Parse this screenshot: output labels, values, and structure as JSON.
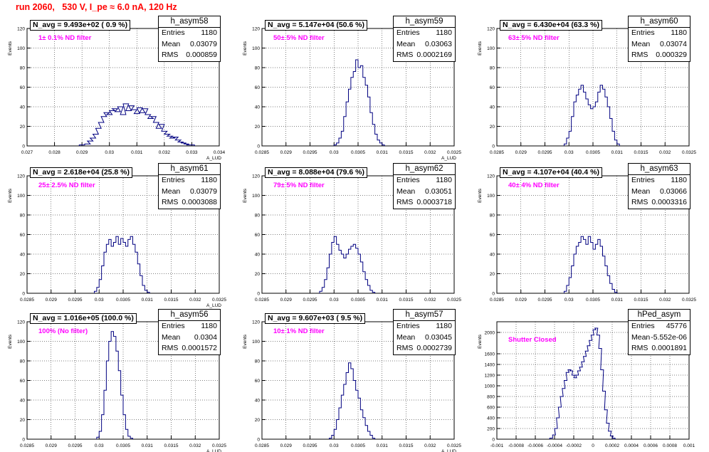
{
  "page": {
    "title": "run 2060,   530 V, I_pe ≈ 6.0 nA, 120 Hz"
  },
  "colors": {
    "title": "#ff0000",
    "histogram": "#000080",
    "filter_label": "#ff00ff",
    "grid": "#000000"
  },
  "chart_data": [
    {
      "type": "histogram",
      "name": "h_asym58",
      "stats": {
        "entries": "1180",
        "mean": "0.03079",
        "rms": "0.000859"
      },
      "n_avg": "N_avg = 9.493e+02 ( 0.9 %)",
      "filter": "1± 0.1% ND filter",
      "xlabel": "A_LUD",
      "ylabel": "Events",
      "xlim": [
        0.027,
        0.034
      ],
      "ylim": [
        0,
        120
      ],
      "xticks": [
        "0.027",
        "0.028",
        "0.029",
        "0.03",
        "0.031",
        "0.032",
        "0.033",
        "0.034"
      ],
      "yticks": [
        "0",
        "20",
        "40",
        "60",
        "80",
        "100",
        "120"
      ],
      "grid": true,
      "bins": [
        [
          0.0289,
          1
        ],
        [
          0.0291,
          2
        ],
        [
          0.0292,
          5
        ],
        [
          0.0293,
          8
        ],
        [
          0.0294,
          12
        ],
        [
          0.0295,
          18
        ],
        [
          0.0296,
          24
        ],
        [
          0.0297,
          30
        ],
        [
          0.0298,
          34
        ],
        [
          0.0299,
          32
        ],
        [
          0.03,
          36
        ],
        [
          0.0301,
          38
        ],
        [
          0.0302,
          35
        ],
        [
          0.0303,
          40
        ],
        [
          0.0304,
          32
        ],
        [
          0.0305,
          43
        ],
        [
          0.0306,
          36
        ],
        [
          0.0307,
          41
        ],
        [
          0.0308,
          37
        ],
        [
          0.0309,
          33
        ],
        [
          0.031,
          39
        ],
        [
          0.0311,
          34
        ],
        [
          0.0312,
          38
        ],
        [
          0.0313,
          32
        ],
        [
          0.0314,
          28
        ],
        [
          0.0315,
          30
        ],
        [
          0.0316,
          24
        ],
        [
          0.0317,
          18
        ],
        [
          0.0318,
          22
        ],
        [
          0.0319,
          15
        ],
        [
          0.032,
          12
        ],
        [
          0.0321,
          10
        ],
        [
          0.0322,
          8
        ],
        [
          0.0323,
          9
        ],
        [
          0.0324,
          6
        ],
        [
          0.0325,
          4
        ],
        [
          0.0326,
          3
        ],
        [
          0.0327,
          2
        ],
        [
          0.0328,
          1
        ],
        [
          0.0329,
          1
        ]
      ]
    },
    {
      "type": "histogram",
      "name": "h_asym59",
      "stats": {
        "entries": "1180",
        "mean": "0.03063",
        "rms": "0.0002169"
      },
      "n_avg": "N_avg = 5.147e+04 (50.6 %)",
      "filter": "50± 5% ND filter",
      "xlabel": "A_LUD",
      "ylabel": "Events",
      "xlim": [
        0.0285,
        0.0325
      ],
      "ylim": [
        0,
        120
      ],
      "xticks": [
        "0.0285",
        "0.029",
        "0.0295",
        "0.03",
        "0.0305",
        "0.031",
        "0.0315",
        "0.032",
        "0.0325"
      ],
      "yticks": [
        "0",
        "20",
        "40",
        "60",
        "80",
        "100",
        "120"
      ],
      "grid": true,
      "bins": [
        [
          0.03,
          1
        ],
        [
          0.03005,
          3
        ],
        [
          0.0301,
          8
        ],
        [
          0.03015,
          15
        ],
        [
          0.0302,
          30
        ],
        [
          0.03025,
          45
        ],
        [
          0.0303,
          58
        ],
        [
          0.03035,
          70
        ],
        [
          0.0304,
          76
        ],
        [
          0.03045,
          88
        ],
        [
          0.0305,
          80
        ],
        [
          0.03055,
          82
        ],
        [
          0.0306,
          70
        ],
        [
          0.03065,
          62
        ],
        [
          0.0307,
          50
        ],
        [
          0.03075,
          34
        ],
        [
          0.0308,
          22
        ],
        [
          0.03085,
          12
        ],
        [
          0.0309,
          6
        ],
        [
          0.03095,
          3
        ],
        [
          0.031,
          1
        ]
      ]
    },
    {
      "type": "histogram",
      "name": "h_asym60",
      "stats": {
        "entries": "1180",
        "mean": "0.03074",
        "rms": "0.000329"
      },
      "n_avg": "N_avg = 6.430e+04 (63.3 %)",
      "filter": "63± 5% ND filter",
      "xlabel": "",
      "ylabel": "Events",
      "xlim": [
        0.0285,
        0.0325
      ],
      "ylim": [
        0,
        120
      ],
      "xticks": [
        "0.0285",
        "0.029",
        "0.0295",
        "0.03",
        "0.0305",
        "0.031",
        "0.0315",
        "0.032",
        "0.0325"
      ],
      "yticks": [
        "0",
        "20",
        "40",
        "60",
        "80",
        "100",
        "120"
      ],
      "grid": true,
      "bins": [
        [
          0.0299,
          2
        ],
        [
          0.02995,
          8
        ],
        [
          0.03,
          15
        ],
        [
          0.03005,
          30
        ],
        [
          0.0301,
          45
        ],
        [
          0.03015,
          52
        ],
        [
          0.0302,
          58
        ],
        [
          0.03025,
          62
        ],
        [
          0.0303,
          55
        ],
        [
          0.03035,
          48
        ],
        [
          0.0304,
          42
        ],
        [
          0.03045,
          38
        ],
        [
          0.0305,
          40
        ],
        [
          0.03055,
          45
        ],
        [
          0.0306,
          55
        ],
        [
          0.03065,
          62
        ],
        [
          0.0307,
          58
        ],
        [
          0.03075,
          50
        ],
        [
          0.0308,
          40
        ],
        [
          0.03085,
          28
        ],
        [
          0.0309,
          15
        ],
        [
          0.03095,
          6
        ],
        [
          0.031,
          2
        ]
      ]
    },
    {
      "type": "histogram",
      "name": "h_asym61",
      "stats": {
        "entries": "1180",
        "mean": "0.03079",
        "rms": "0.0003088"
      },
      "n_avg": "N_avg = 2.618e+04 (25.8 %)",
      "filter": "25± 2.5% ND filter",
      "xlabel": "A_LUD",
      "ylabel": "Events",
      "xlim": [
        0.0285,
        0.0325
      ],
      "ylim": [
        0,
        120
      ],
      "xticks": [
        "0.0285",
        "0.029",
        "0.0295",
        "0.03",
        "0.0305",
        "0.031",
        "0.0315",
        "0.032",
        "0.0325"
      ],
      "yticks": [
        "0",
        "20",
        "40",
        "60",
        "80",
        "100",
        "120"
      ],
      "grid": true,
      "bins": [
        [
          0.0299,
          2
        ],
        [
          0.02995,
          6
        ],
        [
          0.03,
          14
        ],
        [
          0.03005,
          28
        ],
        [
          0.0301,
          42
        ],
        [
          0.03015,
          50
        ],
        [
          0.0302,
          55
        ],
        [
          0.03025,
          48
        ],
        [
          0.0303,
          52
        ],
        [
          0.03035,
          58
        ],
        [
          0.0304,
          50
        ],
        [
          0.03045,
          56
        ],
        [
          0.0305,
          52
        ],
        [
          0.03055,
          48
        ],
        [
          0.0306,
          55
        ],
        [
          0.03065,
          58
        ],
        [
          0.0307,
          50
        ],
        [
          0.03075,
          42
        ],
        [
          0.0308,
          30
        ],
        [
          0.03085,
          18
        ],
        [
          0.0309,
          8
        ],
        [
          0.03095,
          3
        ],
        [
          0.031,
          1
        ]
      ]
    },
    {
      "type": "histogram",
      "name": "h_asym62",
      "stats": {
        "entries": "1180",
        "mean": "0.03051",
        "rms": "0.0003718"
      },
      "n_avg": "N_avg = 8.088e+04 (79.6 %)",
      "filter": "79± 5% ND filter",
      "xlabel": "",
      "ylabel": "Events",
      "xlim": [
        0.0285,
        0.0325
      ],
      "ylim": [
        0,
        120
      ],
      "xticks": [
        "0.0285",
        "0.029",
        "0.0295",
        "0.03",
        "0.0305",
        "0.031",
        "0.0315",
        "0.032",
        "0.0325"
      ],
      "yticks": [
        "0",
        "20",
        "40",
        "60",
        "80",
        "100",
        "120"
      ],
      "grid": true,
      "bins": [
        [
          0.0297,
          2
        ],
        [
          0.02975,
          6
        ],
        [
          0.0298,
          14
        ],
        [
          0.02985,
          26
        ],
        [
          0.0299,
          40
        ],
        [
          0.02995,
          52
        ],
        [
          0.03,
          58
        ],
        [
          0.03005,
          50
        ],
        [
          0.0301,
          44
        ],
        [
          0.03015,
          40
        ],
        [
          0.0302,
          36
        ],
        [
          0.03025,
          40
        ],
        [
          0.0303,
          45
        ],
        [
          0.03035,
          48
        ],
        [
          0.0304,
          50
        ],
        [
          0.03045,
          46
        ],
        [
          0.0305,
          40
        ],
        [
          0.03055,
          32
        ],
        [
          0.0306,
          22
        ],
        [
          0.03065,
          14
        ],
        [
          0.0307,
          8
        ],
        [
          0.03075,
          3
        ],
        [
          0.0308,
          1
        ]
      ]
    },
    {
      "type": "histogram",
      "name": "h_asym63",
      "stats": {
        "entries": "1180",
        "mean": "0.03066",
        "rms": "0.0003316"
      },
      "n_avg": "N_avg = 4.107e+04 (40.4 %)",
      "filter": "40± 4% ND filter",
      "xlabel": "",
      "ylabel": "Events",
      "xlim": [
        0.0285,
        0.0325
      ],
      "ylim": [
        0,
        120
      ],
      "xticks": [
        "0.0285",
        "0.029",
        "0.0295",
        "0.03",
        "0.0305",
        "0.031",
        "0.0315",
        "0.032",
        "0.0325"
      ],
      "yticks": [
        "0",
        "20",
        "40",
        "60",
        "80",
        "100",
        "120"
      ],
      "grid": true,
      "bins": [
        [
          0.0299,
          2
        ],
        [
          0.02995,
          8
        ],
        [
          0.03,
          16
        ],
        [
          0.03005,
          28
        ],
        [
          0.0301,
          40
        ],
        [
          0.03015,
          48
        ],
        [
          0.0302,
          52
        ],
        [
          0.03025,
          58
        ],
        [
          0.0303,
          55
        ],
        [
          0.03035,
          50
        ],
        [
          0.0304,
          58
        ],
        [
          0.03045,
          52
        ],
        [
          0.0305,
          45
        ],
        [
          0.03055,
          50
        ],
        [
          0.0306,
          55
        ],
        [
          0.03065,
          48
        ],
        [
          0.0307,
          38
        ],
        [
          0.03075,
          28
        ],
        [
          0.0308,
          18
        ],
        [
          0.03085,
          10
        ],
        [
          0.0309,
          4
        ],
        [
          0.03095,
          1
        ]
      ]
    },
    {
      "type": "histogram",
      "name": "h_asym56",
      "stats": {
        "entries": "1180",
        "mean": "0.0304",
        "rms": "0.0001572"
      },
      "n_avg": "N_avg = 1.016e+05 (100.0 %)",
      "filter": "100% (No filter)",
      "xlabel": "A_LUD",
      "ylabel": "Events",
      "xlim": [
        0.0285,
        0.0325
      ],
      "ylim": [
        0,
        120
      ],
      "xticks": [
        "0.0285",
        "0.029",
        "0.0295",
        "0.03",
        "0.0305",
        "0.031",
        "0.0315",
        "0.032",
        "0.0325"
      ],
      "yticks": [
        "0",
        "20",
        "40",
        "60",
        "80",
        "100",
        "120"
      ],
      "grid": true,
      "bins": [
        [
          0.02995,
          2
        ],
        [
          0.03,
          8
        ],
        [
          0.03005,
          25
        ],
        [
          0.0301,
          50
        ],
        [
          0.03015,
          80
        ],
        [
          0.0302,
          100
        ],
        [
          0.03025,
          110
        ],
        [
          0.0303,
          105
        ],
        [
          0.03035,
          90
        ],
        [
          0.0304,
          70
        ],
        [
          0.03045,
          45
        ],
        [
          0.0305,
          25
        ],
        [
          0.03055,
          10
        ],
        [
          0.0306,
          3
        ],
        [
          0.03065,
          1
        ]
      ]
    },
    {
      "type": "histogram",
      "name": "h_asym57",
      "stats": {
        "entries": "1180",
        "mean": "0.03045",
        "rms": "0.0002739"
      },
      "n_avg": "N_avg = 9.607e+03 ( 9.5 %)",
      "filter": "10± 1% ND filter",
      "xlabel": "A_LUD",
      "ylabel": "Events",
      "xlim": [
        0.0285,
        0.0325
      ],
      "ylim": [
        0,
        120
      ],
      "xticks": [
        "0.0285",
        "0.029",
        "0.0295",
        "0.03",
        "0.0305",
        "0.031",
        "0.0315",
        "0.032",
        "0.0325"
      ],
      "yticks": [
        "0",
        "20",
        "40",
        "60",
        "80",
        "100",
        "120"
      ],
      "grid": true,
      "bins": [
        [
          0.0299,
          1
        ],
        [
          0.02995,
          4
        ],
        [
          0.03,
          10
        ],
        [
          0.03005,
          20
        ],
        [
          0.0301,
          32
        ],
        [
          0.03015,
          45
        ],
        [
          0.0302,
          56
        ],
        [
          0.03025,
          68
        ],
        [
          0.0303,
          78
        ],
        [
          0.03035,
          72
        ],
        [
          0.0304,
          60
        ],
        [
          0.03045,
          50
        ],
        [
          0.0305,
          42
        ],
        [
          0.03055,
          30
        ],
        [
          0.0306,
          22
        ],
        [
          0.03065,
          14
        ],
        [
          0.0307,
          8
        ],
        [
          0.03075,
          4
        ],
        [
          0.0308,
          1
        ]
      ]
    },
    {
      "type": "histogram",
      "name": "hPed_asym",
      "stats": {
        "entries": "45776",
        "mean": "-5.552e-06",
        "rms": "0.0001891"
      },
      "n_avg": "",
      "filter": "Shutter Closed",
      "xlabel": "",
      "ylabel": "Events",
      "xlim": [
        -0.001,
        0.001
      ],
      "ylim": [
        0,
        2200
      ],
      "xticks": [
        "-0.001",
        "-0.0008",
        "-0.0006",
        "-0.0004",
        "-0.0002",
        "0",
        "0.0002",
        "0.0004",
        "0.0006",
        "0.0008",
        "0.001"
      ],
      "yticks": [
        "0",
        "200",
        "400",
        "600",
        "800",
        "1000",
        "1200",
        "1400",
        "1600",
        "2000"
      ],
      "grid": true,
      "bins": [
        [
          -0.00045,
          20
        ],
        [
          -0.00042,
          80
        ],
        [
          -0.0004,
          200
        ],
        [
          -0.00038,
          400
        ],
        [
          -0.00036,
          600
        ],
        [
          -0.00034,
          800
        ],
        [
          -0.00032,
          950
        ],
        [
          -0.0003,
          1100
        ],
        [
          -0.00028,
          1250
        ],
        [
          -0.00026,
          1300
        ],
        [
          -0.00024,
          1280
        ],
        [
          -0.00022,
          1200
        ],
        [
          -0.0002,
          1150
        ],
        [
          -0.00018,
          1200
        ],
        [
          -0.00016,
          1280
        ],
        [
          -0.00014,
          1350
        ],
        [
          -0.00012,
          1450
        ],
        [
          -0.0001,
          1550
        ],
        [
          -8e-05,
          1650
        ],
        [
          -6e-05,
          1750
        ],
        [
          -4e-05,
          1850
        ],
        [
          -2e-05,
          1950
        ],
        [
          0,
          2050
        ],
        [
          2e-05,
          2080
        ],
        [
          4e-05,
          1950
        ],
        [
          6e-05,
          1700
        ],
        [
          8e-05,
          1300
        ],
        [
          0.0001,
          900
        ],
        [
          0.00012,
          550
        ],
        [
          0.00014,
          300
        ],
        [
          0.00016,
          150
        ],
        [
          0.00018,
          60
        ],
        [
          0.0002,
          20
        ]
      ]
    }
  ]
}
